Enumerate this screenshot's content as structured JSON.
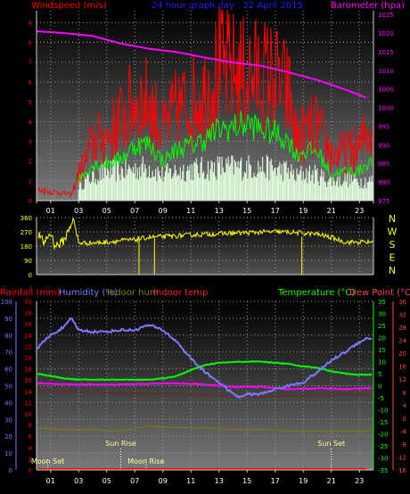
{
  "chart_data": [
    {
      "type": "line",
      "title": "24 hour graph day : 22 April 2015",
      "left_axis_label": "Windspeed (m/s)",
      "right_axis_label": "Barometer (hpa)",
      "x_ticks": [
        "01",
        "03",
        "05",
        "07",
        "09",
        "11",
        "13",
        "15",
        "17",
        "19",
        "21",
        "23"
      ],
      "left_ticks": [
        "0",
        "1",
        "2",
        "3",
        "4",
        "5",
        "6",
        "7",
        "8",
        "9"
      ],
      "right_ticks": [
        "975",
        "980",
        "985",
        "990",
        "995",
        "1000",
        "1005",
        "1010",
        "1015",
        "1020",
        "1025"
      ],
      "ylim_left": [
        0,
        9.6
      ],
      "ylim_right": [
        975,
        1026
      ],
      "series": [
        {
          "role": "gust",
          "color": "#ff0000",
          "x": [
            0,
            1,
            2,
            2.5,
            3,
            3.5,
            4,
            5,
            6,
            7,
            8,
            9,
            10,
            11,
            12,
            13,
            14,
            15,
            16,
            17,
            18,
            18.5,
            19,
            20,
            21,
            22,
            23,
            23.5
          ],
          "values": [
            0.6,
            0.5,
            0.4,
            0.3,
            1.5,
            2.2,
            3.3,
            3.6,
            4.6,
            5.6,
            5.6,
            3.9,
            5.2,
            5.6,
            6.2,
            7.5,
            7.3,
            7.1,
            7.1,
            6.9,
            6.0,
            3.5,
            3.8,
            4.2,
            2.6,
            2.7,
            2.9,
            3.9
          ]
        },
        {
          "role": "average",
          "color": "#00ff00",
          "x": [
            3,
            4,
            5,
            6,
            7,
            8,
            9,
            10,
            11,
            12,
            13,
            14,
            15,
            16,
            17,
            18,
            18.5,
            19,
            20,
            21,
            22,
            23,
            23.5
          ],
          "values": [
            1.1,
            1.8,
            1.9,
            2.1,
            2.8,
            2.9,
            2.0,
            2.6,
            2.8,
            3.1,
            3.6,
            3.7,
            3.9,
            3.6,
            3.4,
            3.0,
            2.3,
            2.5,
            2.5,
            1.3,
            1.5,
            1.5,
            1.9
          ]
        },
        {
          "role": "wind-lull-band",
          "color": "#e4ffe0",
          "x": [
            3,
            4,
            5,
            6,
            7,
            8,
            9,
            10,
            11,
            12,
            13,
            14,
            15,
            16,
            17,
            18,
            18.5,
            19,
            20,
            21,
            22,
            23,
            23.5
          ],
          "values": [
            0.8,
            1.2,
            1.5,
            1.5,
            1.6,
            1.7,
            1.3,
            1.5,
            1.6,
            1.6,
            1.7,
            1.7,
            1.7,
            1.7,
            1.6,
            1.5,
            1.2,
            1.4,
            1.3,
            1.0,
            1.1,
            1.0,
            1.0
          ]
        },
        {
          "role": "barometer",
          "color": "#ff00ff",
          "axis": "right",
          "x": [
            0,
            2,
            4,
            6,
            8,
            10,
            12,
            14,
            16,
            18,
            20,
            22,
            23.5
          ],
          "values": [
            1020.5,
            1020,
            1019.2,
            1017.2,
            1015.8,
            1014.9,
            1013.4,
            1012.1,
            1011.2,
            1009.4,
            1007.4,
            1004.8,
            1002.6
          ]
        }
      ]
    },
    {
      "type": "line",
      "title": "",
      "left_ticks": [
        "0",
        "90",
        "180",
        "270",
        "360"
      ],
      "right_labels": [
        "N",
        "W",
        "S",
        "E",
        "N"
      ],
      "ylim": [
        0,
        360
      ],
      "series": [
        {
          "role": "wind-direction",
          "color": "#ffff00",
          "x": [
            0,
            0.5,
            1,
            1.3,
            1.6,
            2,
            2.3,
            2.6,
            3,
            4,
            5,
            6,
            7,
            8,
            9,
            10,
            11,
            12,
            13,
            14,
            15,
            16,
            17,
            18,
            19,
            20,
            21,
            22,
            23,
            23.5
          ],
          "values": [
            270,
            200,
            265,
            185,
            190,
            220,
            290,
            350,
            200,
            200,
            205,
            215,
            220,
            235,
            240,
            245,
            250,
            255,
            258,
            262,
            265,
            268,
            270,
            268,
            262,
            255,
            235,
            205,
            205,
            205
          ]
        }
      ]
    },
    {
      "type": "line",
      "title": "",
      "legend": [
        "Rainfall (mm)",
        "Humidity (%)",
        "Indoor hum",
        "Indoor temp",
        "Temperature (°C)",
        "Dew Point (°C)"
      ],
      "rain_ticks": [
        "0",
        "2",
        "4",
        "6",
        "8",
        "10",
        "12",
        "14",
        "16",
        "18",
        "20",
        "22",
        "24",
        "26",
        "28",
        "30"
      ],
      "humidity_ticks": [
        "0",
        "10",
        "20",
        "30",
        "40",
        "50",
        "60",
        "70",
        "80",
        "90",
        "100"
      ],
      "temp_ticks": [
        "-35",
        "-30",
        "-25",
        "-20",
        "-15",
        "-10",
        "-5",
        "0",
        "5",
        "10",
        "15",
        "20",
        "25",
        "30",
        "35"
      ],
      "dew_ticks": [
        "-16",
        "-12",
        "-8",
        "-4",
        "0",
        "4",
        "8",
        "12",
        "16",
        "20",
        "24",
        "28",
        "32",
        "36"
      ],
      "ylim_humidity": [
        0,
        100
      ],
      "ylim_temp": [
        -35,
        35
      ],
      "annotations": [
        {
          "text": "Moon Set",
          "x": 0.8
        },
        {
          "text": "Sun Rise",
          "x": 6.0
        },
        {
          "text": "Moon Rise",
          "x": 7.8
        },
        {
          "text": "Sun Set",
          "x": 21.0
        }
      ],
      "series": [
        {
          "role": "humidity",
          "color": "#7a7aff",
          "axis": "humidity",
          "x": [
            0,
            1,
            2,
            2.5,
            3,
            4,
            5,
            6,
            7,
            8,
            9,
            10,
            11,
            12,
            13,
            14,
            14.5,
            15,
            16,
            17,
            18,
            19,
            20,
            21,
            22,
            23,
            23.5
          ],
          "values": [
            72,
            80,
            85,
            90,
            83,
            82,
            82,
            83,
            83,
            86,
            83,
            76,
            66,
            58,
            52,
            45,
            43,
            45,
            45,
            48,
            50,
            52,
            58,
            65,
            70,
            76,
            78
          ]
        },
        {
          "role": "temperature",
          "color": "#00ff00",
          "axis": "temp",
          "x": [
            0,
            1,
            2,
            3,
            4,
            5,
            6,
            7,
            8,
            9,
            10,
            11,
            12,
            13,
            14,
            15,
            16,
            17,
            18,
            19,
            20,
            21,
            22,
            23,
            23.5
          ],
          "values": [
            5,
            4,
            3,
            2.5,
            2.5,
            2.5,
            2.5,
            2.5,
            2.5,
            3,
            4,
            6.5,
            8.5,
            9.5,
            9.8,
            10,
            10,
            9.5,
            9,
            8,
            7.5,
            6,
            5,
            4.5,
            4.5
          ]
        },
        {
          "role": "dew-point",
          "color": "#ff00ff",
          "axis": "temp",
          "x": [
            0,
            2,
            4,
            6,
            8,
            10,
            12,
            14,
            16,
            18,
            20,
            22,
            23.5
          ],
          "values": [
            1,
            0.5,
            0.5,
            0.5,
            0.8,
            1,
            0.5,
            -0.5,
            -0.5,
            -1.5,
            -1,
            -1.5,
            -1
          ]
        },
        {
          "role": "indoor-hum",
          "color": "#808000",
          "axis": "humidity",
          "x": [
            0,
            2,
            4,
            6,
            8,
            10,
            12,
            14,
            16,
            18,
            20,
            22,
            23.5
          ],
          "values": [
            25,
            24,
            24,
            23,
            26,
            25,
            25,
            24,
            24,
            23,
            23,
            23,
            23
          ]
        },
        {
          "role": "indoor-temp",
          "color": "#7a2020",
          "axis": "temp",
          "x": [
            0,
            2,
            4,
            6,
            8,
            10,
            12,
            14,
            16,
            18,
            20,
            22,
            23.5
          ],
          "values": [
            -2,
            -2.3,
            -2.8,
            -3.2,
            -3.5,
            -3.5,
            -4,
            -4.3,
            -4.5,
            -4.2,
            -4,
            -3.8,
            -3.8
          ]
        },
        {
          "role": "rainfall",
          "color": "#ff0000",
          "axis": "rain",
          "x": [
            0,
            23.5
          ],
          "values": [
            0,
            0
          ]
        }
      ]
    }
  ]
}
